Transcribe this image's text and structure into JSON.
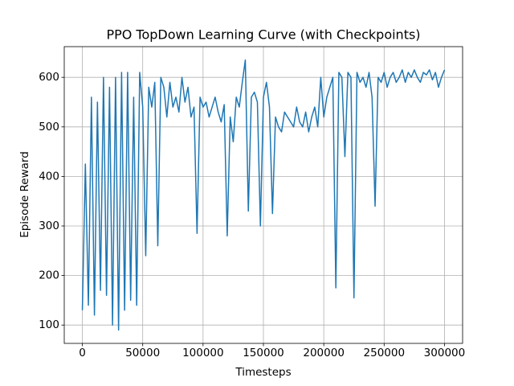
{
  "chart_data": {
    "type": "line",
    "title": "PPO TopDown Learning Curve (with Checkpoints)",
    "x_label": "Timesteps",
    "y_label": "Episode Reward",
    "x": [
      0,
      2500,
      5000,
      7500,
      10000,
      12500,
      15000,
      17500,
      20000,
      22500,
      25000,
      27500,
      30000,
      32500,
      35000,
      37500,
      40000,
      42500,
      45000,
      47500,
      50000,
      52500,
      55000,
      57500,
      60000,
      62500,
      65000,
      67500,
      70000,
      72500,
      75000,
      77500,
      80000,
      82500,
      85000,
      87500,
      90000,
      92500,
      95000,
      97500,
      100000,
      102500,
      105000,
      107500,
      110000,
      112500,
      115000,
      117500,
      120000,
      122500,
      125000,
      127500,
      130000,
      132500,
      135000,
      137500,
      140000,
      142500,
      145000,
      147500,
      150000,
      152500,
      155000,
      157500,
      160000,
      162500,
      165000,
      167500,
      170000,
      172500,
      175000,
      177500,
      180000,
      182500,
      185000,
      187500,
      190000,
      192500,
      195000,
      197500,
      200000,
      202500,
      205000,
      207500,
      210000,
      212500,
      215000,
      217500,
      220000,
      222500,
      225000,
      227500,
      230000,
      232500,
      235000,
      237500,
      240000,
      242500,
      245000,
      247500,
      250000,
      252500,
      255000,
      257500,
      260000,
      262500,
      265000,
      267500,
      270000,
      272500,
      275000,
      277500,
      280000,
      282500,
      285000,
      287500,
      290000,
      292500,
      295000,
      297500,
      300000
    ],
    "series": [
      {
        "name": "Episode Reward",
        "color": "#1f77b4",
        "values": [
          130,
          425,
          140,
          560,
          120,
          550,
          170,
          600,
          160,
          580,
          100,
          600,
          90,
          610,
          130,
          610,
          150,
          560,
          140,
          610,
          540,
          240,
          580,
          540,
          590,
          260,
          600,
          580,
          520,
          590,
          540,
          560,
          530,
          600,
          550,
          580,
          520,
          540,
          285,
          560,
          540,
          550,
          520,
          540,
          560,
          530,
          510,
          545,
          280,
          520,
          470,
          560,
          540,
          590,
          635,
          330,
          560,
          570,
          550,
          300,
          560,
          590,
          540,
          325,
          520,
          500,
          490,
          530,
          520,
          510,
          500,
          540,
          510,
          500,
          530,
          490,
          520,
          540,
          500,
          600,
          520,
          560,
          580,
          600,
          175,
          610,
          600,
          440,
          610,
          600,
          155,
          610,
          590,
          600,
          580,
          610,
          560,
          340,
          600,
          590,
          610,
          580,
          600,
          610,
          590,
          600,
          615,
          590,
          610,
          600,
          615,
          600,
          590,
          610,
          605,
          615,
          595,
          610,
          580,
          600,
          615
        ]
      }
    ],
    "xlim": [
      -15000,
      315000
    ],
    "ylim": [
      63,
      662
    ],
    "xticks": [
      0,
      50000,
      100000,
      150000,
      200000,
      250000,
      300000
    ],
    "yticks": [
      100,
      200,
      300,
      400,
      500,
      600
    ],
    "grid": true
  }
}
